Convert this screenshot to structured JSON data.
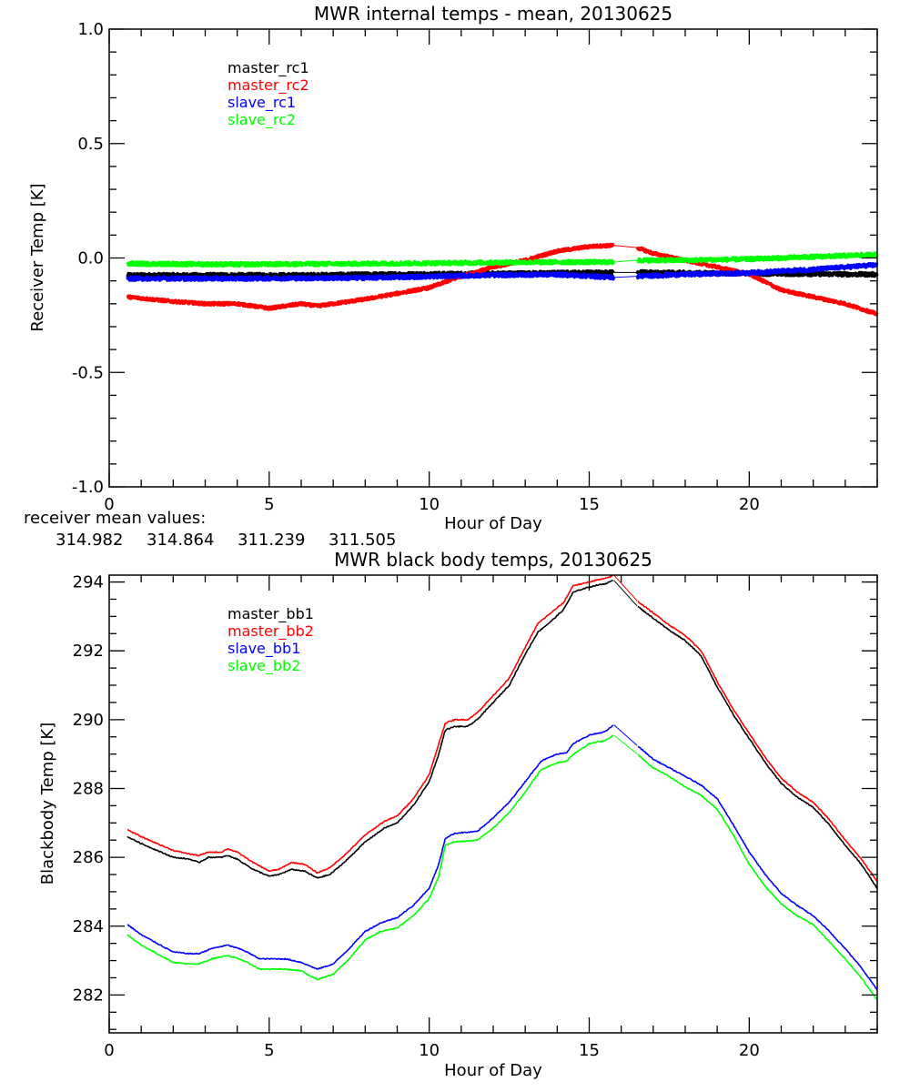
{
  "chart_data": [
    {
      "type": "line",
      "title": "MWR internal temps - mean, 20130625",
      "xlabel": "Hour of Day",
      "ylabel": "Receiver Temp [K]",
      "xlim": [
        0,
        24
      ],
      "ylim": [
        -1.0,
        1.0
      ],
      "xticks": [
        0,
        5,
        10,
        15,
        20
      ],
      "xtick_labels": [
        "0",
        "5",
        "10",
        "15",
        "20"
      ],
      "yticks": [
        -1.0,
        -0.5,
        0.0,
        0.5,
        1.0
      ],
      "ytick_labels": [
        "-1.0",
        "-0.5",
        "0.0",
        "0.5",
        "1.0"
      ],
      "grid": false,
      "legend_position": "top-left",
      "data_gap": [
        15.77,
        16.5
      ],
      "series": [
        {
          "name": "master_rc1",
          "color": "#000000",
          "noise": 0.008,
          "x": [
            0.57,
            2,
            4,
            6,
            8,
            10,
            12,
            14,
            15.77,
            16.5,
            18,
            20,
            22,
            24
          ],
          "y": [
            -0.075,
            -0.075,
            -0.075,
            -0.075,
            -0.072,
            -0.07,
            -0.068,
            -0.065,
            -0.063,
            -0.063,
            -0.065,
            -0.068,
            -0.07,
            -0.072
          ]
        },
        {
          "name": "master_rc2",
          "color": "#ff0000",
          "noise": 0.006,
          "x": [
            0.57,
            2,
            3,
            4,
            5,
            6,
            6.5,
            8,
            10,
            11,
            12,
            13,
            14,
            15,
            15.77,
            16.5,
            17,
            18,
            19,
            20,
            21,
            22,
            23,
            24
          ],
          "y": [
            -0.17,
            -0.19,
            -0.2,
            -0.2,
            -0.22,
            -0.2,
            -0.21,
            -0.18,
            -0.13,
            -0.08,
            -0.04,
            -0.01,
            0.03,
            0.05,
            0.055,
            0.045,
            0.02,
            -0.01,
            -0.04,
            -0.07,
            -0.14,
            -0.17,
            -0.2,
            -0.245
          ]
        },
        {
          "name": "slave_rc1",
          "color": "#0000ff",
          "noise": 0.008,
          "x": [
            0.57,
            4,
            8,
            12,
            14,
            15.77,
            16.5,
            18,
            20,
            22,
            24
          ],
          "y": [
            -0.09,
            -0.09,
            -0.087,
            -0.075,
            -0.072,
            -0.085,
            -0.08,
            -0.072,
            -0.065,
            -0.05,
            -0.03
          ]
        },
        {
          "name": "slave_rc2",
          "color": "#00ff00",
          "noise": 0.008,
          "x": [
            0.57,
            4,
            8,
            12,
            14,
            15.77,
            16.5,
            18,
            20,
            22,
            24
          ],
          "y": [
            -0.025,
            -0.028,
            -0.025,
            -0.02,
            -0.018,
            -0.018,
            -0.01,
            -0.01,
            -0.005,
            0.005,
            0.015
          ]
        }
      ],
      "annotation": {
        "label": "receiver mean values:",
        "values": [
          {
            "text": "314.982",
            "color": "#000000"
          },
          {
            "text": "314.864",
            "color": "#ff0000"
          },
          {
            "text": "311.239",
            "color": "#0000ff"
          },
          {
            "text": "311.505",
            "color": "#00ff00"
          }
        ]
      }
    },
    {
      "type": "line",
      "title": "MWR black body temps, 20130625",
      "xlabel": "Hour of Day",
      "ylabel": "Blackbody Temp [K]",
      "xlim": [
        0,
        24
      ],
      "ylim": [
        280.9,
        294.2
      ],
      "xticks": [
        0,
        5,
        10,
        15,
        20
      ],
      "xtick_labels": [
        "0",
        "5",
        "10",
        "15",
        "20"
      ],
      "yticks": [
        282,
        284,
        286,
        288,
        290,
        292,
        294
      ],
      "ytick_labels": [
        "282",
        "284",
        "286",
        "288",
        "290",
        "292",
        "294"
      ],
      "grid": false,
      "legend_position": "top-left",
      "data_gap": [
        15.77,
        16.5
      ],
      "series": [
        {
          "name": "master_bb1",
          "color": "#000000",
          "x": [
            0.57,
            1,
            1.5,
            2,
            2.5,
            2.8,
            3.1,
            3.5,
            3.7,
            4,
            4.5,
            5,
            5.3,
            5.7,
            6.1,
            6.5,
            6.9,
            7.4,
            8,
            8.6,
            9,
            9.5,
            10,
            10.3,
            10.5,
            10.8,
            11.2,
            11.5,
            12,
            12.5,
            13,
            13.4,
            13.8,
            14.2,
            14.5,
            14.8,
            15.2,
            15.5,
            15.77,
            16.5,
            17,
            17.5,
            18,
            18.5,
            19,
            19.5,
            20,
            20.5,
            21,
            21.5,
            22,
            22.5,
            23,
            23.5,
            24
          ],
          "y": [
            286.6,
            286.4,
            286.2,
            286.0,
            285.95,
            285.85,
            286.0,
            286.0,
            286.05,
            285.95,
            285.65,
            285.45,
            285.5,
            285.65,
            285.6,
            285.4,
            285.5,
            285.9,
            286.45,
            286.85,
            287.0,
            287.5,
            288.2,
            289.0,
            289.7,
            289.8,
            289.8,
            290.0,
            290.5,
            291.0,
            291.9,
            292.55,
            292.85,
            293.2,
            293.7,
            293.8,
            293.9,
            293.95,
            294.05,
            293.3,
            292.95,
            292.6,
            292.3,
            291.85,
            290.95,
            290.15,
            289.45,
            288.75,
            288.15,
            287.75,
            287.45,
            286.95,
            286.35,
            285.8,
            285.1
          ]
        },
        {
          "name": "master_bb2",
          "color": "#ff0000",
          "x": [
            0.57,
            1,
            1.5,
            2,
            2.5,
            2.8,
            3.1,
            3.5,
            3.7,
            4,
            4.5,
            5,
            5.3,
            5.7,
            6.1,
            6.5,
            6.9,
            7.4,
            8,
            8.6,
            9,
            9.5,
            10,
            10.3,
            10.5,
            10.8,
            11.2,
            11.5,
            12,
            12.5,
            13,
            13.4,
            13.8,
            14.2,
            14.5,
            14.8,
            15.2,
            15.5,
            15.77,
            16.5,
            17,
            17.5,
            18,
            18.5,
            19,
            19.5,
            20,
            20.5,
            21,
            21.5,
            22,
            22.5,
            23,
            23.5,
            24
          ],
          "y": [
            286.8,
            286.6,
            286.4,
            286.2,
            286.1,
            286.05,
            286.15,
            286.15,
            286.25,
            286.15,
            285.85,
            285.6,
            285.65,
            285.85,
            285.8,
            285.55,
            285.7,
            286.1,
            286.65,
            287.05,
            287.2,
            287.7,
            288.4,
            289.3,
            289.9,
            290.0,
            290.0,
            290.2,
            290.7,
            291.2,
            292.1,
            292.8,
            293.1,
            293.4,
            293.9,
            293.95,
            294.05,
            294.1,
            294.2,
            293.45,
            293.1,
            292.75,
            292.45,
            292.0,
            291.1,
            290.3,
            289.6,
            288.9,
            288.3,
            287.9,
            287.6,
            287.1,
            286.5,
            285.95,
            285.3
          ]
        },
        {
          "name": "slave_bb1",
          "color": "#0000ff",
          "x": [
            0.57,
            1,
            1.5,
            2,
            2.5,
            2.8,
            3.2,
            3.7,
            4.2,
            4.7,
            5.5,
            6,
            6.5,
            7,
            7.5,
            8,
            8.5,
            9,
            9.5,
            10,
            10.3,
            10.5,
            10.8,
            11.5,
            12,
            12.5,
            13,
            13.5,
            14,
            14.3,
            14.5,
            15,
            15.5,
            15.77,
            16.5,
            17,
            17.5,
            18,
            18.5,
            19,
            19.5,
            20,
            20.5,
            21,
            21.5,
            22,
            22.5,
            23,
            23.5,
            24
          ],
          "y": [
            284.05,
            283.75,
            283.5,
            283.25,
            283.2,
            283.2,
            283.35,
            283.45,
            283.3,
            283.05,
            283.05,
            282.95,
            282.75,
            282.9,
            283.35,
            283.85,
            284.1,
            284.25,
            284.6,
            285.1,
            285.8,
            286.55,
            286.7,
            286.75,
            287.15,
            287.6,
            288.2,
            288.8,
            289.0,
            289.05,
            289.3,
            289.55,
            289.65,
            289.85,
            289.25,
            288.85,
            288.6,
            288.35,
            288.1,
            287.7,
            286.95,
            286.15,
            285.5,
            284.95,
            284.6,
            284.3,
            283.85,
            283.35,
            282.8,
            282.15
          ]
        },
        {
          "name": "slave_bb2",
          "color": "#00ff00",
          "x": [
            0.57,
            1,
            1.5,
            2,
            2.5,
            2.8,
            3.2,
            3.7,
            4.2,
            4.7,
            5.5,
            6,
            6.5,
            7,
            7.5,
            8,
            8.5,
            9,
            9.5,
            10,
            10.3,
            10.5,
            10.8,
            11.5,
            12,
            12.5,
            13,
            13.5,
            14,
            14.3,
            14.5,
            15,
            15.5,
            15.77,
            16.5,
            17,
            17.5,
            18,
            18.5,
            19,
            19.5,
            20,
            20.5,
            21,
            21.5,
            22,
            22.5,
            23,
            23.5,
            24
          ],
          "y": [
            283.75,
            283.45,
            283.2,
            282.95,
            282.9,
            282.9,
            283.05,
            283.15,
            283.0,
            282.75,
            282.75,
            282.7,
            282.45,
            282.6,
            283.05,
            283.6,
            283.85,
            283.95,
            284.3,
            284.8,
            285.45,
            286.35,
            286.45,
            286.5,
            286.85,
            287.3,
            287.9,
            288.55,
            288.75,
            288.8,
            289.0,
            289.3,
            289.4,
            289.55,
            289.0,
            288.6,
            288.35,
            288.05,
            287.8,
            287.4,
            286.65,
            285.8,
            285.15,
            284.65,
            284.3,
            284.05,
            283.55,
            283.05,
            282.5,
            281.85
          ]
        }
      ]
    }
  ]
}
